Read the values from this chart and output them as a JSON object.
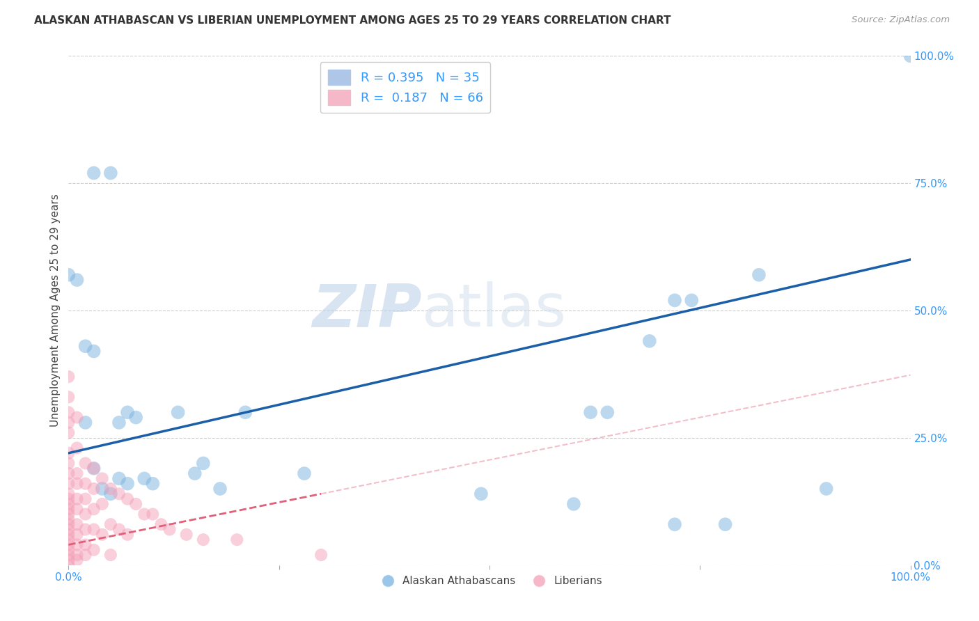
{
  "title": "ALASKAN ATHABASCAN VS LIBERIAN UNEMPLOYMENT AMONG AGES 25 TO 29 YEARS CORRELATION CHART",
  "source": "Source: ZipAtlas.com",
  "ylabel": "Unemployment Among Ages 25 to 29 years",
  "legend_labels": [
    "Alaskan Athabascans",
    "Liberians"
  ],
  "background_color": "#ffffff",
  "grid_color": "#cccccc",
  "watermark_zip": "ZIP",
  "watermark_atlas": "atlas",
  "blue_color": "#7ab3e0",
  "pink_color": "#f4a0b8",
  "blue_line_color": "#1a5fa8",
  "pink_line_color": "#e0607a",
  "athabascan_points": [
    [
      0.0,
      0.57
    ],
    [
      0.01,
      0.56
    ],
    [
      0.02,
      0.43
    ],
    [
      0.03,
      0.77
    ],
    [
      0.05,
      0.77
    ],
    [
      0.03,
      0.42
    ],
    [
      0.02,
      0.28
    ],
    [
      0.06,
      0.28
    ],
    [
      0.07,
      0.3
    ],
    [
      0.03,
      0.19
    ],
    [
      0.04,
      0.15
    ],
    [
      0.05,
      0.14
    ],
    [
      0.06,
      0.17
    ],
    [
      0.07,
      0.16
    ],
    [
      0.08,
      0.29
    ],
    [
      0.09,
      0.17
    ],
    [
      0.1,
      0.16
    ],
    [
      0.13,
      0.3
    ],
    [
      0.15,
      0.18
    ],
    [
      0.16,
      0.2
    ],
    [
      0.18,
      0.15
    ],
    [
      0.21,
      0.3
    ],
    [
      0.28,
      0.18
    ],
    [
      0.49,
      0.14
    ],
    [
      0.6,
      0.12
    ],
    [
      0.62,
      0.3
    ],
    [
      0.64,
      0.3
    ],
    [
      0.69,
      0.44
    ],
    [
      0.72,
      0.52
    ],
    [
      0.74,
      0.52
    ],
    [
      0.82,
      0.57
    ],
    [
      0.9,
      0.15
    ],
    [
      0.72,
      0.08
    ],
    [
      0.78,
      0.08
    ],
    [
      1.0,
      1.0
    ]
  ],
  "liberian_points": [
    [
      0.0,
      0.37
    ],
    [
      0.0,
      0.33
    ],
    [
      0.0,
      0.3
    ],
    [
      0.0,
      0.28
    ],
    [
      0.0,
      0.26
    ],
    [
      0.0,
      0.22
    ],
    [
      0.0,
      0.2
    ],
    [
      0.0,
      0.18
    ],
    [
      0.0,
      0.16
    ],
    [
      0.0,
      0.14
    ],
    [
      0.0,
      0.13
    ],
    [
      0.0,
      0.12
    ],
    [
      0.0,
      0.11
    ],
    [
      0.0,
      0.1
    ],
    [
      0.0,
      0.09
    ],
    [
      0.0,
      0.08
    ],
    [
      0.0,
      0.07
    ],
    [
      0.0,
      0.06
    ],
    [
      0.0,
      0.05
    ],
    [
      0.0,
      0.04
    ],
    [
      0.0,
      0.03
    ],
    [
      0.0,
      0.02
    ],
    [
      0.0,
      0.01
    ],
    [
      0.0,
      0.0
    ],
    [
      0.01,
      0.29
    ],
    [
      0.01,
      0.23
    ],
    [
      0.01,
      0.18
    ],
    [
      0.01,
      0.16
    ],
    [
      0.01,
      0.13
    ],
    [
      0.01,
      0.11
    ],
    [
      0.01,
      0.08
    ],
    [
      0.01,
      0.06
    ],
    [
      0.01,
      0.04
    ],
    [
      0.01,
      0.02
    ],
    [
      0.01,
      0.01
    ],
    [
      0.02,
      0.2
    ],
    [
      0.02,
      0.16
    ],
    [
      0.02,
      0.13
    ],
    [
      0.02,
      0.1
    ],
    [
      0.02,
      0.07
    ],
    [
      0.02,
      0.04
    ],
    [
      0.02,
      0.02
    ],
    [
      0.03,
      0.19
    ],
    [
      0.03,
      0.15
    ],
    [
      0.03,
      0.11
    ],
    [
      0.03,
      0.07
    ],
    [
      0.03,
      0.03
    ],
    [
      0.04,
      0.17
    ],
    [
      0.04,
      0.12
    ],
    [
      0.04,
      0.06
    ],
    [
      0.05,
      0.15
    ],
    [
      0.05,
      0.08
    ],
    [
      0.05,
      0.02
    ],
    [
      0.06,
      0.14
    ],
    [
      0.06,
      0.07
    ],
    [
      0.07,
      0.13
    ],
    [
      0.07,
      0.06
    ],
    [
      0.08,
      0.12
    ],
    [
      0.09,
      0.1
    ],
    [
      0.1,
      0.1
    ],
    [
      0.11,
      0.08
    ],
    [
      0.12,
      0.07
    ],
    [
      0.14,
      0.06
    ],
    [
      0.16,
      0.05
    ],
    [
      0.2,
      0.05
    ],
    [
      0.3,
      0.02
    ]
  ],
  "atha_line_x0": 0.0,
  "atha_line_y0": 0.22,
  "atha_line_x1": 1.0,
  "atha_line_y1": 0.6,
  "lib_line_x0": 0.0,
  "lib_line_y0": 0.04,
  "lib_line_x1": 0.3,
  "lib_line_y1": 0.14,
  "xlim": [
    0.0,
    1.0
  ],
  "ylim": [
    0.0,
    1.0
  ],
  "ytick_positions": [
    0.0,
    0.25,
    0.5,
    0.75,
    1.0
  ],
  "ytick_labels": [
    "0.0%",
    "25.0%",
    "50.0%",
    "75.0%",
    "100.0%"
  ],
  "xtick_labels_left": "0.0%",
  "xtick_labels_right": "100.0%"
}
